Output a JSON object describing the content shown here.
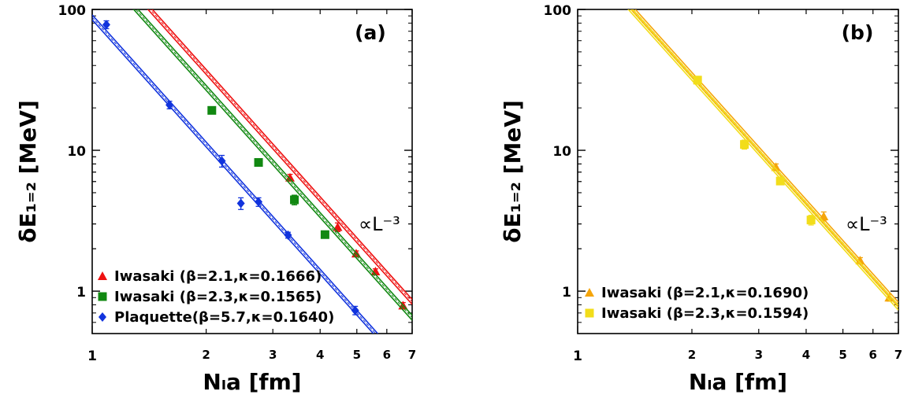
{
  "chart_data": [
    {
      "type": "scatter",
      "panel_label": "(a)",
      "xlabel": "Nₗa [fm]",
      "ylabel": "δE₁₌₂ [MeV]",
      "x_scale": "log",
      "y_scale": "log",
      "xlim": [
        1,
        7
      ],
      "ylim": [
        0.5,
        100
      ],
      "x_ticks": [
        1,
        2,
        3,
        4,
        5,
        6,
        7
      ],
      "y_ticks": [
        1,
        10,
        100
      ],
      "legend_position": "bottom-left",
      "annotation": "∝L⁻³",
      "series": [
        {
          "name": "Iwasaki (β=2.1,κ=0.1666)",
          "marker": "triangle",
          "color": "#ee1111",
          "points": [
            {
              "x": 3.33,
              "y": 6.4,
              "err": 0.35
            },
            {
              "x": 4.45,
              "y": 2.85,
              "err": 0.2
            },
            {
              "x": 4.98,
              "y": 1.85,
              "err": 0.08
            },
            {
              "x": 5.6,
              "y": 1.38,
              "err": 0.06
            },
            {
              "x": 6.62,
              "y": 0.79,
              "err": 0.04
            }
          ],
          "fit": {
            "x": [
              1.1,
              7
            ],
            "amplitude": 288
          }
        },
        {
          "name": "Iwasaki (β=2.3,κ=0.1565)",
          "marker": "square",
          "color": "#118811",
          "points": [
            {
              "x": 2.07,
              "y": 19.2,
              "err": 0.6
            },
            {
              "x": 2.75,
              "y": 8.2,
              "err": 0.35
            },
            {
              "x": 3.42,
              "y": 4.45,
              "err": 0.35
            },
            {
              "x": 4.12,
              "y": 2.52,
              "err": 0.1
            }
          ],
          "fit": {
            "x": [
              1.1,
              7
            ],
            "amplitude": 222
          }
        },
        {
          "name": "Plaquette(β=5.7,κ=0.1640)",
          "marker": "diamond",
          "color": "#1133dd",
          "points": [
            {
              "x": 1.09,
              "y": 78,
              "err": 5
            },
            {
              "x": 1.6,
              "y": 21,
              "err": 1.3
            },
            {
              "x": 2.2,
              "y": 8.4,
              "err": 0.8
            },
            {
              "x": 2.47,
              "y": 4.2,
              "err": 0.4
            },
            {
              "x": 2.75,
              "y": 4.3,
              "err": 0.3
            },
            {
              "x": 3.29,
              "y": 2.5,
              "err": 0.12
            },
            {
              "x": 4.95,
              "y": 0.73,
              "err": 0.05
            }
          ],
          "fit": {
            "x": [
              1,
              7
            ],
            "amplitude": 88
          }
        }
      ]
    },
    {
      "type": "scatter",
      "panel_label": "(b)",
      "xlabel": "Nₗa [fm]",
      "ylabel": "δE₁₌₂ [MeV]",
      "x_scale": "log",
      "y_scale": "log",
      "xlim": [
        1,
        7
      ],
      "ylim": [
        0.5,
        100
      ],
      "x_ticks": [
        1,
        2,
        3,
        4,
        5,
        6,
        7
      ],
      "y_ticks": [
        1,
        10,
        100
      ],
      "legend_position": "bottom-left",
      "annotation": "∝L⁻³",
      "series": [
        {
          "name": "Iwasaki (β=2.1,κ=0.1690)",
          "marker": "triangle",
          "color": "#f5a50a",
          "points": [
            {
              "x": 3.33,
              "y": 7.6,
              "err": 0.4
            },
            {
              "x": 4.45,
              "y": 3.4,
              "err": 0.25
            },
            {
              "x": 5.55,
              "y": 1.65,
              "err": 0.08
            },
            {
              "x": 6.62,
              "y": 0.9,
              "err": 0.05
            }
          ],
          "fit": {
            "x": [
              1.3,
              7
            ],
            "amplitude": 275
          }
        },
        {
          "name": "Iwasaki (β=2.3,κ=0.1594)",
          "marker": "square",
          "color": "#f2dd1a",
          "points": [
            {
              "x": 2.07,
              "y": 31.5,
              "err": 2.0
            },
            {
              "x": 2.75,
              "y": 11.0,
              "err": 0.8
            },
            {
              "x": 3.42,
              "y": 6.05,
              "err": 0.35
            },
            {
              "x": 4.12,
              "y": 3.2,
              "err": 0.25
            }
          ],
          "fit": {
            "x": [
              1.3,
              7
            ],
            "amplitude": 262
          }
        }
      ]
    }
  ]
}
